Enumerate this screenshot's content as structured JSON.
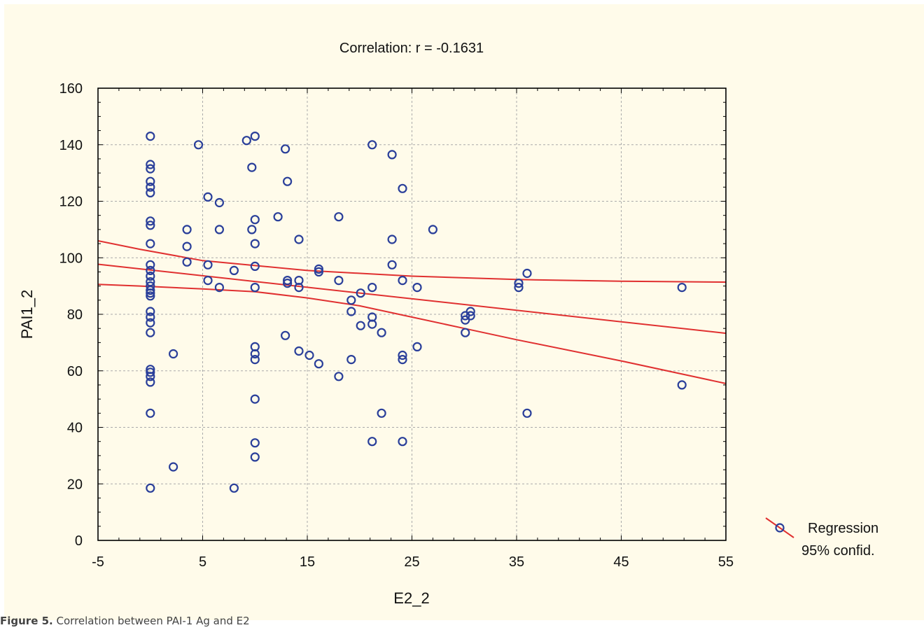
{
  "caption": {
    "label": "Figure 5.",
    "text": "Correlation between PAI-1 Ag and E2"
  },
  "chart_data": {
    "type": "scatter",
    "title": "Correlation: r = -0.1631",
    "xlabel": "E2_2",
    "ylabel": "PAI1_2",
    "xlim": [
      -5,
      55
    ],
    "ylim": [
      0,
      160
    ],
    "xticks": [
      -5,
      5,
      15,
      25,
      35,
      45,
      55
    ],
    "yticks": [
      0,
      20,
      40,
      60,
      80,
      100,
      120,
      140,
      160
    ],
    "grid": true,
    "legend_position": "right",
    "legend": [
      "Regression",
      "95% confid."
    ],
    "colors": {
      "points": "#2a3f9a",
      "lines": "#e03030",
      "background": "#fffbea",
      "grid": "#aaaaaa"
    },
    "regression": {
      "intercept": 95.67,
      "slope": -0.407
    },
    "confidence_band": {
      "upper": [
        [
          -5,
          106
        ],
        [
          -1,
          103
        ],
        [
          5,
          99
        ],
        [
          15,
          95.5
        ],
        [
          25,
          93.5
        ],
        [
          35,
          92.3
        ],
        [
          45,
          91.7
        ],
        [
          55,
          91.4
        ]
      ],
      "lower": [
        [
          -5,
          90.6
        ],
        [
          -1,
          90
        ],
        [
          5,
          89
        ],
        [
          10,
          88
        ],
        [
          15,
          85.8
        ],
        [
          20,
          83
        ],
        [
          25,
          79
        ],
        [
          30,
          75
        ],
        [
          35,
          71
        ],
        [
          45,
          63.5
        ],
        [
          55,
          55.5
        ]
      ]
    },
    "points": [
      [
        0,
        143
      ],
      [
        0,
        133
      ],
      [
        0,
        131.5
      ],
      [
        0,
        127
      ],
      [
        0,
        125
      ],
      [
        0,
        123
      ],
      [
        0,
        113
      ],
      [
        0,
        111.5
      ],
      [
        0,
        105
      ],
      [
        0,
        97.5
      ],
      [
        0,
        95.5
      ],
      [
        0,
        93.5
      ],
      [
        0,
        91.5
      ],
      [
        0,
        90
      ],
      [
        0,
        88.5
      ],
      [
        0,
        87.5
      ],
      [
        0,
        86.5
      ],
      [
        0,
        81
      ],
      [
        0,
        79
      ],
      [
        0,
        77
      ],
      [
        0,
        73.5
      ],
      [
        0,
        60.5
      ],
      [
        0,
        59.5
      ],
      [
        0,
        58
      ],
      [
        0,
        56
      ],
      [
        0,
        45
      ],
      [
        0,
        18.5
      ],
      [
        2.2,
        66
      ],
      [
        2.2,
        26
      ],
      [
        3.5,
        110
      ],
      [
        3.5,
        104
      ],
      [
        3.5,
        98.5
      ],
      [
        4.6,
        140
      ],
      [
        5.5,
        121.5
      ],
      [
        5.5,
        97.5
      ],
      [
        5.5,
        92
      ],
      [
        6.6,
        119.5
      ],
      [
        6.6,
        110
      ],
      [
        6.6,
        89.5
      ],
      [
        8,
        95.5
      ],
      [
        8,
        18.5
      ],
      [
        9.2,
        141.5
      ],
      [
        9.7,
        132
      ],
      [
        9.7,
        110
      ],
      [
        10,
        143
      ],
      [
        10,
        113.5
      ],
      [
        10,
        105
      ],
      [
        10,
        97
      ],
      [
        10,
        89.5
      ],
      [
        10,
        68.5
      ],
      [
        10,
        66
      ],
      [
        10,
        64
      ],
      [
        10,
        50
      ],
      [
        10,
        34.5
      ],
      [
        10,
        29.5
      ],
      [
        12.2,
        114.5
      ],
      [
        12.9,
        138.5
      ],
      [
        12.9,
        72.5
      ],
      [
        13.1,
        127
      ],
      [
        13.1,
        92
      ],
      [
        13.1,
        91
      ],
      [
        14.2,
        106.5
      ],
      [
        14.2,
        92
      ],
      [
        14.2,
        89.5
      ],
      [
        14.2,
        67
      ],
      [
        15.2,
        65.5
      ],
      [
        16.1,
        96
      ],
      [
        16.1,
        95
      ],
      [
        16.1,
        62.5
      ],
      [
        18,
        114.5
      ],
      [
        18,
        92
      ],
      [
        18,
        58
      ],
      [
        19.2,
        85
      ],
      [
        19.2,
        81
      ],
      [
        19.2,
        64
      ],
      [
        20.1,
        87.5
      ],
      [
        20.1,
        76
      ],
      [
        21.2,
        140
      ],
      [
        21.2,
        89.5
      ],
      [
        21.2,
        79
      ],
      [
        21.2,
        76.5
      ],
      [
        21.2,
        35
      ],
      [
        22.1,
        73.5
      ],
      [
        22.1,
        45
      ],
      [
        23.1,
        136.5
      ],
      [
        23.1,
        106.5
      ],
      [
        23.1,
        97.5
      ],
      [
        24.1,
        124.5
      ],
      [
        24.1,
        92
      ],
      [
        24.1,
        65.5
      ],
      [
        24.1,
        64
      ],
      [
        24.1,
        35
      ],
      [
        25.5,
        89.5
      ],
      [
        25.5,
        68.5
      ],
      [
        27,
        110
      ],
      [
        30.1,
        79.5
      ],
      [
        30.1,
        78
      ],
      [
        30.1,
        73.5
      ],
      [
        30.6,
        81
      ],
      [
        30.6,
        79.5
      ],
      [
        35.2,
        91
      ],
      [
        35.2,
        89.5
      ],
      [
        36,
        94.5
      ],
      [
        36,
        45
      ],
      [
        50.8,
        89.5
      ],
      [
        50.8,
        55
      ]
    ]
  }
}
